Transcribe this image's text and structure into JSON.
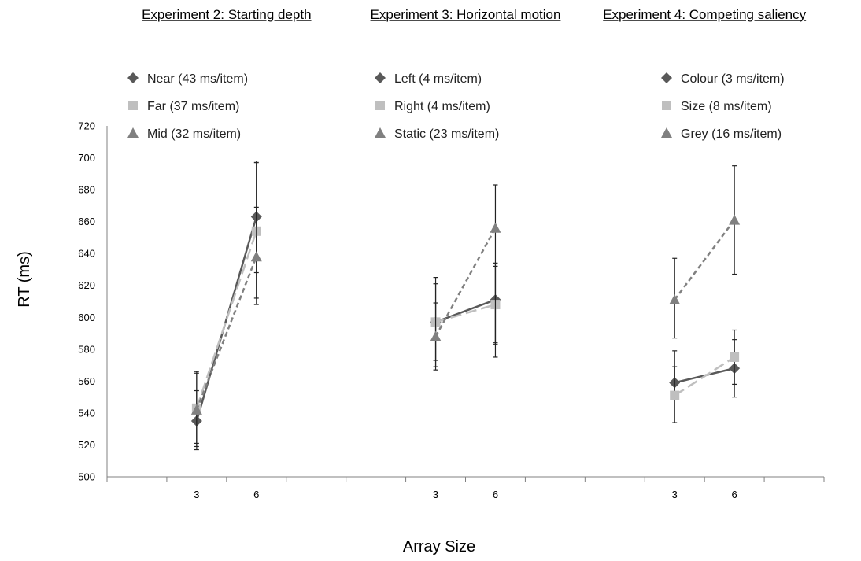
{
  "chart_data": {
    "type": "line",
    "xlabel": "Array Size",
    "ylabel": "RT (ms)",
    "ylim": [
      500,
      720
    ],
    "yticks": [
      "500",
      "520",
      "540",
      "560",
      "580",
      "600",
      "620",
      "640",
      "660",
      "680",
      "700",
      "720"
    ],
    "grid": false,
    "panels": [
      {
        "title": "Experiment 2: Starting depth",
        "categories": [
          "3",
          "6"
        ],
        "series": [
          {
            "name": "Near (43 ms/item)",
            "values": [
              535,
              663
            ],
            "error": [
              [
                519,
                565
              ],
              [
                628,
                698
              ]
            ],
            "marker": "diamond",
            "color": "#595959",
            "dash": "solid"
          },
          {
            "name": "Far (37 ms/item)",
            "values": [
              543,
              654
            ],
            "error": [
              [
                521,
                566
              ],
              [
                612,
                697
              ]
            ],
            "marker": "square",
            "color": "#bfbfbf",
            "dash": "longdash"
          },
          {
            "name": "Mid (32 ms/item)",
            "values": [
              542,
              638
            ],
            "error": [
              [
                517,
                554
              ],
              [
                608,
                669
              ]
            ],
            "marker": "triangle",
            "color": "#808080",
            "dash": "shortdash"
          }
        ]
      },
      {
        "title": "Experiment 3: Horizontal motion",
        "categories": [
          "3",
          "6"
        ],
        "series": [
          {
            "name": "Left (4 ms/item)",
            "values": [
              597,
              611
            ],
            "error": [
              [
                573,
                621
              ],
              [
                584,
                632
              ]
            ],
            "marker": "diamond",
            "color": "#595959",
            "dash": "solid"
          },
          {
            "name": "Right (4 ms/item)",
            "values": [
              597,
              608
            ],
            "error": [
              [
                569,
                625
              ],
              [
                583,
                634
              ]
            ],
            "marker": "square",
            "color": "#bfbfbf",
            "dash": "longdash"
          },
          {
            "name": "Static (23 ms/item)",
            "values": [
              588,
              656
            ],
            "error": [
              [
                567,
                609
              ],
              [
                575,
                683
              ]
            ],
            "marker": "triangle",
            "color": "#808080",
            "dash": "shortdash"
          }
        ]
      },
      {
        "title": "Experiment 4: Competing saliency",
        "categories": [
          "3",
          "6"
        ],
        "series": [
          {
            "name": "Colour (3 ms/item)",
            "values": [
              559,
              568
            ],
            "error": [
              [
                549,
                569
              ],
              [
                558,
                586
              ]
            ],
            "marker": "diamond",
            "color": "#595959",
            "dash": "solid"
          },
          {
            "name": "Size (8 ms/item)",
            "values": [
              551,
              575
            ],
            "error": [
              [
                534,
                579
              ],
              [
                550,
                592
              ]
            ],
            "marker": "square",
            "color": "#bfbfbf",
            "dash": "longdash"
          },
          {
            "name": "Grey (16 ms/item)",
            "values": [
              611,
              661
            ],
            "error": [
              [
                587,
                637
              ],
              [
                627,
                695
              ]
            ],
            "marker": "triangle",
            "color": "#808080",
            "dash": "shortdash"
          }
        ]
      }
    ]
  }
}
